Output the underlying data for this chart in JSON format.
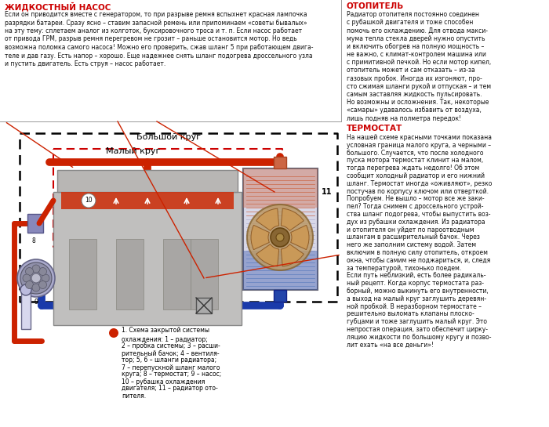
{
  "bg_color": "#ffffff",
  "title_pump": "ЖИДКОСТНЫЙ НАСОС",
  "title_pump_color": "#cc0000",
  "title_heater": "ОТОПИТЕЛЬ",
  "title_heater_color": "#cc0000",
  "title_thermostat": "ТЕРМОСТАТ",
  "title_thermostat_color": "#cc0000",
  "text_pump": "Если он приводится вместе с генератором, то при разрыве ремня вспыхнет красная лампочка разрядки батареи. Сразу ясно – ставим запасной ремень или припоминаем «советы бывалых» на эту тему: сплетаем аналог из колготок, буксировочного троса и т. п. Если насос работает от привода ГРМ, разрыв ремня перегревом не грозит – раньше остановится мотор. Но ведь возможна поломка самого насоса! Можно его проверить, сжав шланг 5 при работающем двига-теле и дав газу. Есть напор – хорошо. Еще надежнее снять шланг подогрева дроссельного узла и пустить двигатель. Есть струя – насос работает.",
  "text_heater": "Радиатор отопителя постоянно соединен с рубашкой двигателя и тоже способен помочь его охлаждению. Для отвода макси-мума тепла стекла дверей нужно опустить и включить обогрев на полную мощность – не важно, с климат-контролем машина или с примитивной печкой. Но если мотор кипел, отопитель может и сам отказать – из-за газовых пробок. Иногда их изгоняют, про-сто сжимая шланги рукой и отпуская – и тем самым заставляя жидкость пульсировать. Но возможны и осложнения. Так, некоторые «самары» удавалось избавить от воздуха, лишь подняв на полметра передок!",
  "text_thermostat": "На нашей схеме красными точками показана условная граница малого круга, а черными – большого. Случается, что после холодного пуска мотора термостат клинит на малом, тогда перегрева ждать недолго! Об этом сообщит холодный радиатор и его нижний шланг. Термостат иногда «оживляют», резко постучав по корпусу ключом или отверткой. Попробуем. Не вышло – мотор все же заки-пел? Тогда снимем с дроссельного устрой-ства шланг подогрева, чтобы выпустить воз-дух из рубашки охлаждения. Из радиатора и отопителя он уйдет по пароотводным шлангам в расширительный бачок. Через него же заполним систему водой. Затем включим в полную силу отопитель, откроем окна, чтобы самим не поджариться, и, следя за температурой, тихонько поедем. Если путь неблизкий, есть более радикаль-ный рецепт. Когда корпус термостата раз-борный, можно выкинуть его внутренности, а выход на малый круг заглушить деревян-ной пробкой. В неразборном термостате – решительно выломать клапаны плоско-губцами и тоже заглушить малый круг. Это непростая операция, зато обеспечит цирку-ляцию жидкости по большому кругу и позво-лит ехать «на все деньги»!",
  "caption": "1. Схема закрытой системы охлаждения: 1 – радиатор; 2 – пробка системы; 3 – расши-рительный бачок; 4 – вентиля-тор; 5, 6 – шланги радиатора; 7 – перепускной шланг малого круга; 8 – термостат; 9 – насос; 10 – рубашка охлаждения двигателя; 11 – радиатор ото-пителя.",
  "label_big": "Большой круг",
  "label_small": "Малый круг"
}
